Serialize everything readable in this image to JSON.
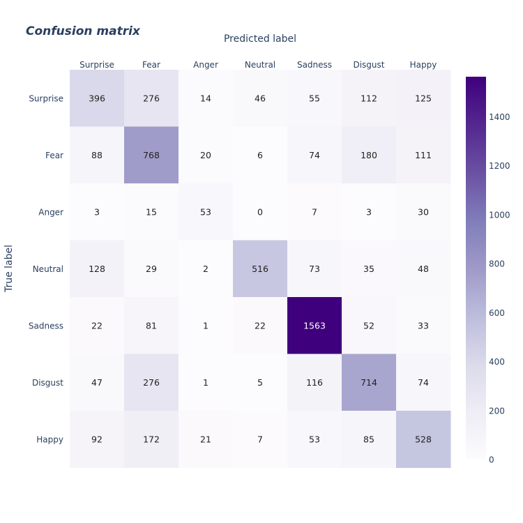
{
  "chart_data": {
    "type": "heatmap",
    "title": "Confusion matrix",
    "xlabel": "Predicted label",
    "ylabel": "True label",
    "x_categories": [
      "Surprise",
      "Fear",
      "Anger",
      "Neutral",
      "Sadness",
      "Disgust",
      "Happy"
    ],
    "y_categories": [
      "Surprise",
      "Fear",
      "Anger",
      "Neutral",
      "Sadness",
      "Disgust",
      "Happy"
    ],
    "values": [
      [
        396,
        276,
        14,
        46,
        55,
        112,
        125
      ],
      [
        88,
        768,
        20,
        6,
        74,
        180,
        111
      ],
      [
        3,
        15,
        53,
        0,
        7,
        3,
        30
      ],
      [
        128,
        29,
        2,
        516,
        73,
        35,
        48
      ],
      [
        22,
        81,
        1,
        22,
        1563,
        52,
        33
      ],
      [
        47,
        276,
        1,
        5,
        116,
        714,
        74
      ],
      [
        92,
        172,
        21,
        7,
        53,
        85,
        528
      ]
    ],
    "x_axis_position": "top",
    "colorscale": "Purples",
    "colorbar": {
      "range": [
        0,
        1563
      ],
      "ticks": [
        0,
        200,
        400,
        600,
        800,
        1000,
        1200,
        1400
      ]
    },
    "legend": "none",
    "grid": false
  }
}
